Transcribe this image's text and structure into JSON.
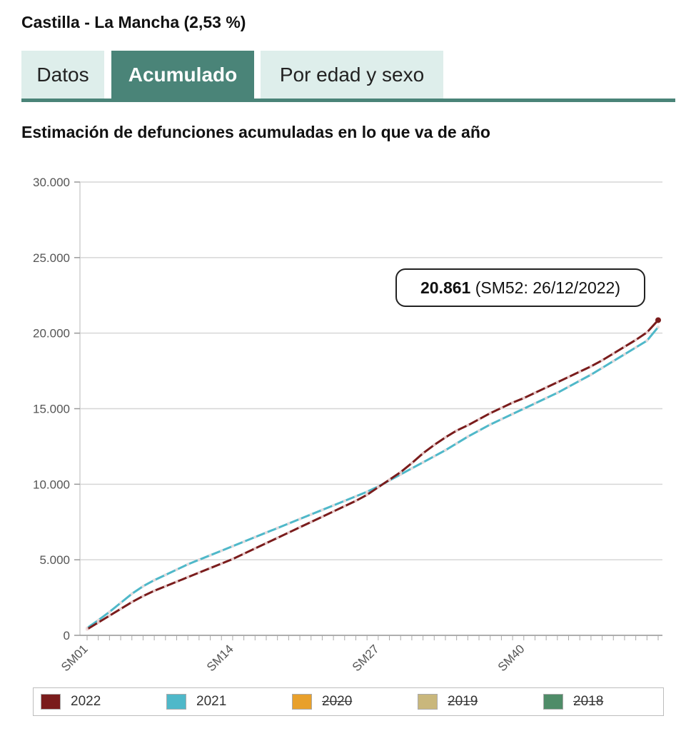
{
  "region": {
    "title": "Castilla - La Mancha (2,53 %)"
  },
  "tabs": [
    {
      "label": "Datos",
      "active": false
    },
    {
      "label": "Acumulado",
      "active": true
    },
    {
      "label": "Por edad y sexo",
      "active": false
    }
  ],
  "chart_title": "Estimación de defunciones acumuladas en lo que va de año",
  "tooltip": {
    "value": "20.861",
    "detail": "(SM52: 26/12/2022)"
  },
  "colors": {
    "tab_active": "#4a8478",
    "tab_inactive": "#deeeeb"
  },
  "chart_data": {
    "type": "line",
    "title": "Estimación de defunciones acumuladas en lo que va de año",
    "xlabel": "",
    "ylabel": "",
    "ylim": [
      0,
      30000
    ],
    "y_ticks": [
      0,
      5000,
      10000,
      15000,
      20000,
      25000,
      30000
    ],
    "y_tick_labels": [
      "0",
      "5.000",
      "10.000",
      "15.000",
      "20.000",
      "25.000",
      "30.000"
    ],
    "x_tick_labels": [
      "SM01",
      "SM14",
      "SM27",
      "SM40"
    ],
    "x": [
      "SM01",
      "SM02",
      "SM03",
      "SM04",
      "SM05",
      "SM06",
      "SM07",
      "SM08",
      "SM09",
      "SM10",
      "SM11",
      "SM12",
      "SM13",
      "SM14",
      "SM15",
      "SM16",
      "SM17",
      "SM18",
      "SM19",
      "SM20",
      "SM21",
      "SM22",
      "SM23",
      "SM24",
      "SM25",
      "SM26",
      "SM27",
      "SM28",
      "SM29",
      "SM30",
      "SM31",
      "SM32",
      "SM33",
      "SM34",
      "SM35",
      "SM36",
      "SM37",
      "SM38",
      "SM39",
      "SM40",
      "SM41",
      "SM42",
      "SM43",
      "SM44",
      "SM45",
      "SM46",
      "SM47",
      "SM48",
      "SM49",
      "SM50",
      "SM51",
      "SM52"
    ],
    "series": [
      {
        "name": "2022",
        "color": "#7a1c1c",
        "visible": true,
        "values": [
          400,
          850,
          1300,
          1750,
          2200,
          2600,
          2950,
          3250,
          3550,
          3850,
          4150,
          4450,
          4750,
          5050,
          5400,
          5750,
          6100,
          6450,
          6800,
          7150,
          7500,
          7850,
          8200,
          8550,
          8900,
          9300,
          9800,
          10300,
          10800,
          11400,
          12050,
          12600,
          13100,
          13550,
          13900,
          14300,
          14700,
          15050,
          15400,
          15700,
          16050,
          16400,
          16750,
          17100,
          17450,
          17800,
          18200,
          18650,
          19100,
          19550,
          20050,
          20861
        ]
      },
      {
        "name": "2021",
        "color": "#4fb8c9",
        "visible": true,
        "values": [
          480,
          1000,
          1550,
          2150,
          2750,
          3250,
          3650,
          4000,
          4350,
          4700,
          5000,
          5300,
          5600,
          5900,
          6200,
          6500,
          6800,
          7100,
          7400,
          7700,
          8000,
          8300,
          8600,
          8900,
          9200,
          9500,
          9850,
          10250,
          10650,
          11050,
          11450,
          11850,
          12250,
          12700,
          13150,
          13550,
          13950,
          14300,
          14650,
          15000,
          15350,
          15700,
          16050,
          16450,
          16850,
          17250,
          17700,
          18150,
          18600,
          19050,
          19500,
          20400
        ]
      },
      {
        "name": "2020",
        "color": "#e8a02c",
        "visible": false
      },
      {
        "name": "2019",
        "color": "#c9b77c",
        "visible": false
      },
      {
        "name": "2018",
        "color": "#4f8c68",
        "visible": false
      }
    ]
  }
}
